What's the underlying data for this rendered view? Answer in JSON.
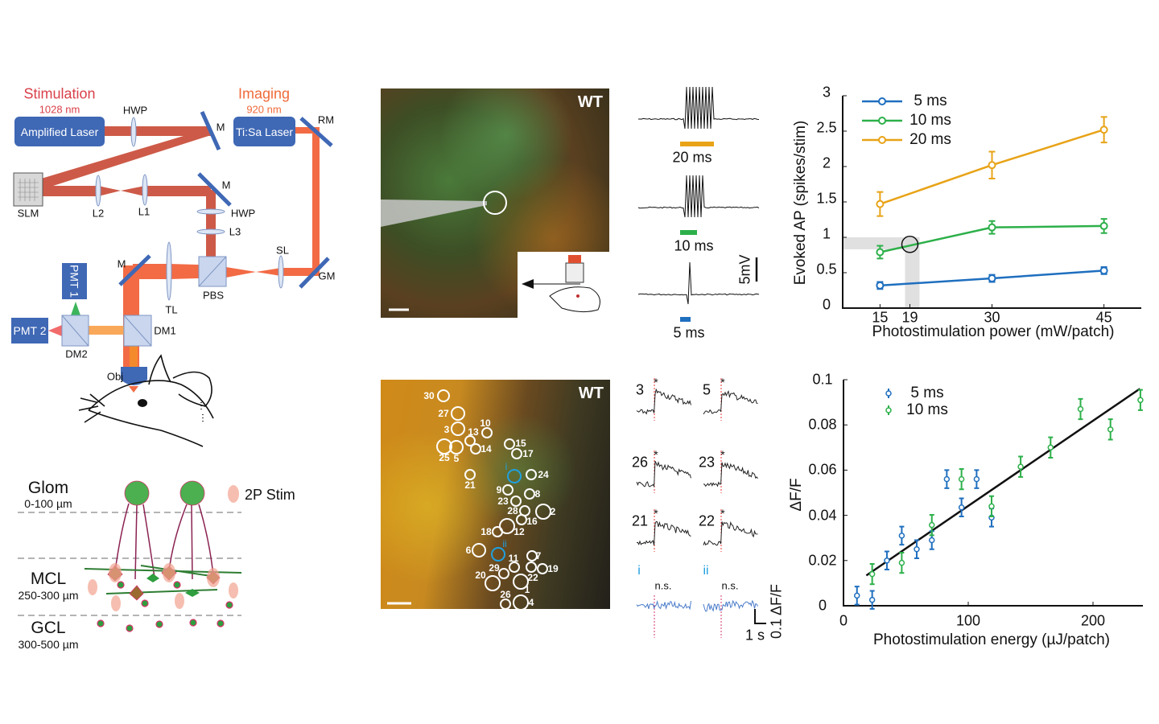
{
  "setup": {
    "stimulation_title": "Stimulation",
    "stimulation_wavelength": "1028 nm",
    "imaging_title": "Imaging",
    "imaging_wavelength": "920 nm",
    "amplified_laser": "Amplified Laser",
    "tisa_laser": "Ti:Sa Laser",
    "labels": {
      "hwp1": "HWP",
      "m1": "M",
      "rm": "RM",
      "slm": "SLM",
      "l2": "L2",
      "l1": "L1",
      "m2": "M",
      "hwp2": "HWP",
      "l3": "L3",
      "sl": "SL",
      "gm": "GM",
      "pbs": "PBS",
      "m3": "M",
      "tl": "TL",
      "pmt1": "PMT 1",
      "pmt2": "PMT 2",
      "dm1": "DM1",
      "dm2": "DM2",
      "obj": "Obj"
    },
    "colors": {
      "stim_beam": "#cd5a48",
      "imaging_beam": "#f26b45",
      "emission": "#f9a85a",
      "component": "#3f68b5",
      "stim_text": "#d9414a",
      "imaging_text": "#f06a3a"
    }
  },
  "layers": {
    "glom": "Glom",
    "glom_depth": "0-100 µm",
    "mcl": "MCL",
    "mcl_depth": "250-300 µm",
    "gcl": "GCL",
    "gcl_depth": "300-500 µm",
    "legend": "2P Stim"
  },
  "image_top": {
    "label": "WT"
  },
  "image_bottom": {
    "label": "WT",
    "cells": [
      "30",
      "27",
      "3",
      "13",
      "10",
      "25",
      "5",
      "14",
      "15",
      "17",
      "i",
      "24",
      "21",
      "9",
      "8",
      "23",
      "28",
      "2",
      "16",
      "12",
      "18",
      "6",
      "ii",
      "11",
      "7",
      "29",
      "22",
      "19",
      "20",
      "1",
      "26",
      "4"
    ]
  },
  "ephys": {
    "durations": [
      "20 ms",
      "10 ms",
      "5 ms"
    ],
    "duration_colors": [
      "#e8a317",
      "#2db04a",
      "#1f6fbf"
    ],
    "scale": "5mV"
  },
  "calcium": {
    "traces": [
      {
        "label": "3",
        "star": "*"
      },
      {
        "label": "5",
        "star": "*"
      },
      {
        "label": "26",
        "star": "*"
      },
      {
        "label": "23",
        "star": "*"
      },
      {
        "label": "21",
        "star": "*"
      },
      {
        "label": "22",
        "star": "*"
      },
      {
        "label": "i",
        "note": "n.s."
      },
      {
        "label": "ii",
        "note": "n.s."
      }
    ],
    "scale_time": "1 s",
    "scale_amp": "0.1 ΔF/F"
  },
  "chart_data": [
    {
      "type": "line",
      "xlabel": "Photostimulation power (mW/patch)",
      "ylabel": "Evoked AP (spikes/stim)",
      "xlim": [
        10,
        50
      ],
      "ylim": [
        0,
        3
      ],
      "xticks": [
        "15",
        "19",
        "30",
        "45"
      ],
      "xtick_values": [
        15,
        19,
        30,
        45
      ],
      "yticks": [
        "0",
        "0.5",
        "1",
        "1.5",
        "2",
        "2.5",
        "3"
      ],
      "x": [
        15,
        30,
        45
      ],
      "legend_position": "top-left",
      "highlight": {
        "x": 19,
        "y": 0.9
      },
      "series": [
        {
          "name": "5 ms",
          "color": "#1f6fbf",
          "values": [
            0.32,
            0.42,
            0.53
          ],
          "errors": [
            0.05,
            0.05,
            0.05
          ]
        },
        {
          "name": "10 ms",
          "color": "#2db04a",
          "values": [
            0.79,
            1.14,
            1.16
          ],
          "errors": [
            0.09,
            0.09,
            0.1
          ]
        },
        {
          "name": "20 ms",
          "color": "#e8a317",
          "values": [
            1.47,
            2.02,
            2.52
          ],
          "errors": [
            0.17,
            0.19,
            0.18
          ]
        }
      ]
    },
    {
      "type": "scatter",
      "xlabel": "Photostimulation energy (µJ/patch)",
      "ylabel": "ΔF/F",
      "xlim": [
        0,
        240
      ],
      "ylim": [
        0,
        0.1
      ],
      "xticks": [
        "0",
        "100",
        "200"
      ],
      "yticks": [
        "0",
        "0.02",
        "0.04",
        "0.06",
        "0.08",
        "0.1"
      ],
      "legend_position": "top-left",
      "series": [
        {
          "name": "5 ms",
          "color": "#1f6fbf",
          "x": [
            10.8,
            23,
            34.8,
            46.7,
            58.7,
            70.8,
            82.8,
            94.6,
            106.7,
            118.7
          ],
          "y": [
            0.0045,
            0.0026,
            0.02,
            0.031,
            0.025,
            0.029,
            0.056,
            0.0435,
            0.056,
            0.039
          ],
          "err": 0.004
        },
        {
          "name": "10 ms",
          "color": "#2db04a",
          "x": [
            23,
            46.7,
            70.8,
            94.6,
            118.7,
            142,
            166,
            190,
            214,
            238
          ],
          "y": [
            0.014,
            0.019,
            0.0357,
            0.056,
            0.044,
            0.0615,
            0.07,
            0.087,
            0.078,
            0.091
          ],
          "err": 0.0045
        }
      ],
      "fit": {
        "x": [
          18.3,
          237.6
        ],
        "y": [
          0.0134,
          0.096
        ]
      }
    }
  ]
}
